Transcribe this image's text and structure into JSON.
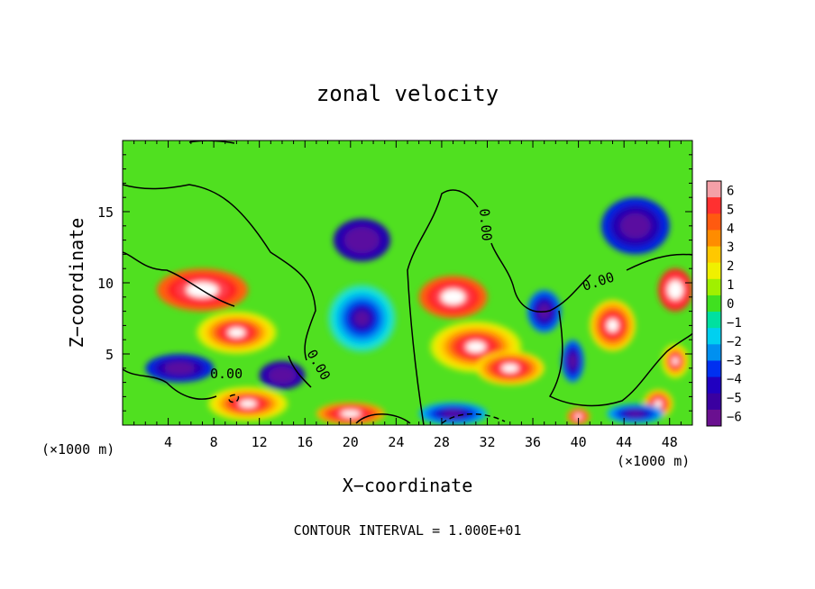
{
  "chart_data": {
    "type": "heatmap",
    "title": "zonal velocity",
    "xlabel": "X−coordinate",
    "ylabel": "Z−coordinate",
    "x_unit_left": "(×1000 m)",
    "x_unit_right": "(×1000 m)",
    "xlim": [
      0,
      50
    ],
    "ylim": [
      0,
      20
    ],
    "x_ticks": [
      4,
      8,
      12,
      16,
      20,
      24,
      28,
      32,
      36,
      40,
      44,
      48
    ],
    "y_ticks": [
      5,
      10,
      15
    ],
    "colorbar": {
      "min": -6,
      "max": 6,
      "tick_labels": [
        "6",
        "5",
        "4",
        "3",
        "2",
        "1",
        "0",
        "−1",
        "−2",
        "−3",
        "−4",
        "−5",
        "−6"
      ],
      "colors": [
        "#f4a0a8",
        "#ff3030",
        "#ff5a10",
        "#ff8c00",
        "#ffc800",
        "#f0f000",
        "#a0f000",
        "#40e020",
        "#00e0a0",
        "#00d0f0",
        "#0090f0",
        "#0030f0",
        "#2000c0",
        "#3a00a0",
        "#6a1090"
      ]
    },
    "contour_label": "0.00",
    "footer": "CONTOUR INTERVAL = 1.000E+01",
    "features": [
      {
        "x": 21,
        "z": 7.5,
        "sign": "neg",
        "amp": 6.5,
        "sx": 3.0,
        "sz": 2.4
      },
      {
        "x": 31,
        "z": 5.5,
        "sign": "pos",
        "amp": 7.5,
        "sx": 4.0,
        "sz": 1.8
      },
      {
        "x": 34,
        "z": 4.0,
        "sign": "pos",
        "amp": 6.0,
        "sx": 3.0,
        "sz": 1.2
      },
      {
        "x": 10,
        "z": 6.5,
        "sign": "pos",
        "amp": 6.5,
        "sx": 3.5,
        "sz": 1.5
      },
      {
        "x": 11,
        "z": 1.5,
        "sign": "pos",
        "amp": 8.0,
        "sx": 3.5,
        "sz": 1.2
      },
      {
        "x": 43,
        "z": 7.0,
        "sign": "pos",
        "amp": 6.0,
        "sx": 2.0,
        "sz": 1.8
      },
      {
        "x": 48.5,
        "z": 4.5,
        "sign": "pos",
        "amp": 7.0,
        "sx": 1.2,
        "sz": 1.2
      },
      {
        "x": 47,
        "z": 1.5,
        "sign": "pos",
        "amp": 6.0,
        "sx": 1.3,
        "sz": 1.0
      },
      {
        "x": 37,
        "z": 8.0,
        "sign": "neg",
        "amp": 4.0,
        "sx": 1.5,
        "sz": 1.5
      },
      {
        "x": 39.5,
        "z": 4.5,
        "sign": "neg",
        "amp": 3.5,
        "sx": 1.0,
        "sz": 1.5
      },
      {
        "x": 45,
        "z": 14.0,
        "sign": "neg",
        "amp": 2.5,
        "sx": 3.0,
        "sz": 2.0
      },
      {
        "x": 21,
        "z": 13.0,
        "sign": "neg",
        "amp": 2.0,
        "sx": 2.5,
        "sz": 1.5
      },
      {
        "x": 29,
        "z": 0.8,
        "sign": "neg",
        "amp": 5.0,
        "sx": 3.0,
        "sz": 0.8
      },
      {
        "x": 20,
        "z": 0.8,
        "sign": "pos",
        "amp": 5.0,
        "sx": 3.0,
        "sz": 0.8
      },
      {
        "x": 45,
        "z": 0.8,
        "sign": "neg",
        "amp": 4.5,
        "sx": 2.5,
        "sz": 0.7
      },
      {
        "x": 40,
        "z": 0.6,
        "sign": "pos",
        "amp": 4.5,
        "sx": 1.0,
        "sz": 0.6
      },
      {
        "x": 5,
        "z": 4.0,
        "sign": "neg",
        "amp": 2.5,
        "sx": 3.0,
        "sz": 1.0
      },
      {
        "x": 7,
        "z": 9.5,
        "sign": "pos",
        "amp": 3.5,
        "sx": 4.0,
        "sz": 1.5
      },
      {
        "x": 48.5,
        "z": 9.5,
        "sign": "pos",
        "amp": 2.5,
        "sx": 1.5,
        "sz": 1.5
      },
      {
        "x": 14,
        "z": 3.5,
        "sign": "neg",
        "amp": 2.0,
        "sx": 2.0,
        "sz": 1.0
      },
      {
        "x": 29,
        "z": 9.0,
        "sign": "pos",
        "amp": 3.5,
        "sx": 3.0,
        "sz": 1.5
      }
    ]
  }
}
